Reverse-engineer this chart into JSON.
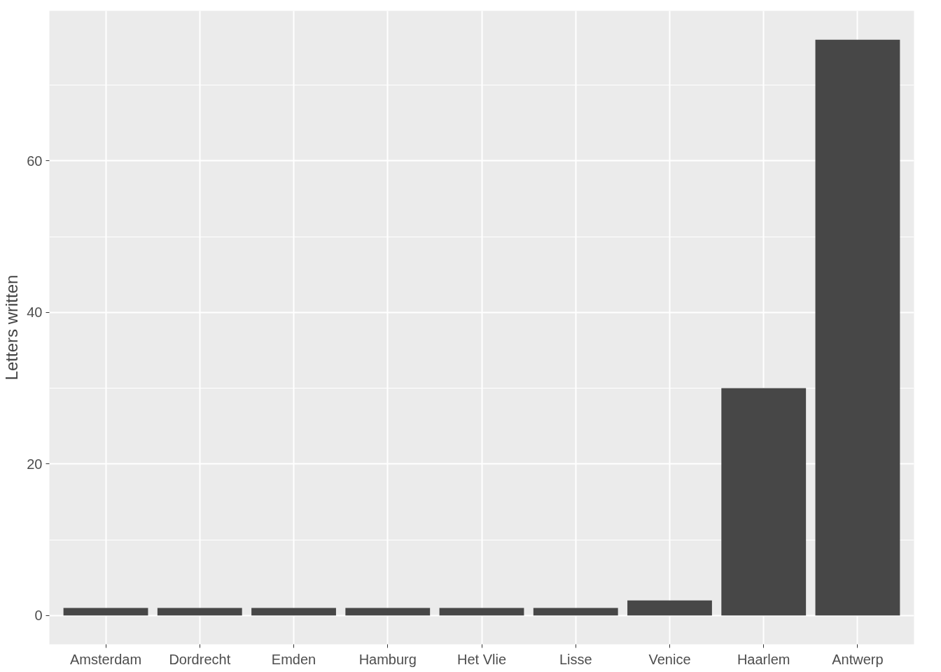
{
  "chart_data": {
    "type": "bar",
    "ylabel": "Letters written",
    "categories": [
      "Amsterdam",
      "Dordrecht",
      "Emden",
      "Hamburg",
      "Het Vlie",
      "Lisse",
      "Venice",
      "Haarlem",
      "Antwerp"
    ],
    "values": [
      1,
      1,
      1,
      1,
      1,
      1,
      2,
      30,
      76
    ],
    "color": "#474747",
    "ylim": [
      -3.8,
      79.8
    ],
    "yticks": [
      0,
      {
        "value": 10,
        "label": null
      },
      20,
      {
        "value": 30,
        "label": null
      },
      40,
      {
        "value": 50,
        "label": null
      },
      60,
      {
        "value": 70,
        "label": null
      }
    ],
    "grid": true
  }
}
